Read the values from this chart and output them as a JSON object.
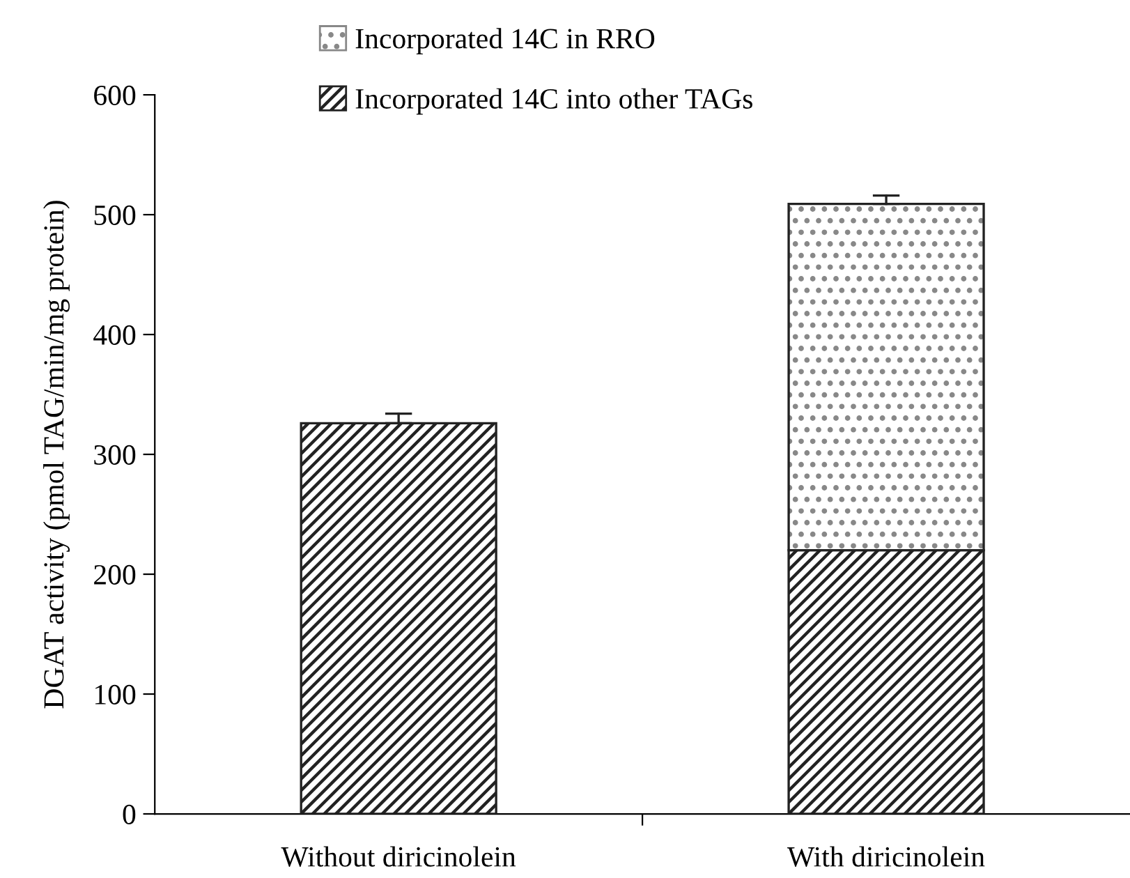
{
  "chart_data": {
    "type": "bar",
    "stacked": true,
    "ylabel": "DGAT activity (pmol TAG/min/mg protein)",
    "categories": [
      "Without diricinolein",
      "With diricinolein"
    ],
    "series": [
      {
        "name": "Incorporated 14C into other TAGs",
        "color": "#222222",
        "values": [
          326,
          220
        ],
        "errors": [
          [
            326,
            334
          ],
          null
        ]
      },
      {
        "name": "Incorporated 14C in RRO",
        "color": "#888888",
        "values": [
          null,
          289
        ],
        "errors": [
          null,
          [
            509,
            516
          ]
        ]
      }
    ],
    "ylim": [
      0,
      600
    ],
    "yticks": [
      0,
      100,
      200,
      300,
      400,
      500,
      600
    ],
    "legend": "top",
    "grid": false
  }
}
